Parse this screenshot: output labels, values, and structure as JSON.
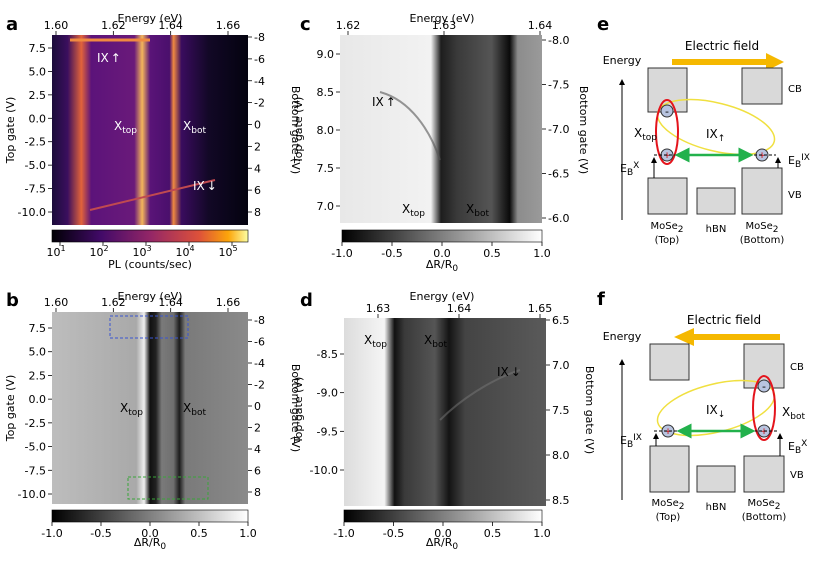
{
  "panels": {
    "a": {
      "label": "a",
      "top_axis": "Energy (eV)",
      "top_ticks": [
        "1.60",
        "1.62",
        "1.64",
        "1.66"
      ],
      "left_axis": "Top gate (V)",
      "left_ticks": [
        "7.5",
        "5.0",
        "2.5",
        "0.0",
        "-2.5",
        "-5.0",
        "-7.5",
        "-10.0"
      ],
      "right_axis": "Bottom gate (V)",
      "right_ticks": [
        "-8",
        "-6",
        "-4",
        "-2",
        "0",
        "2",
        "4",
        "6",
        "8"
      ],
      "annotations": {
        "ix_up": "IX",
        "x_top": "X",
        "x_top_sub": "top",
        "x_bot": "X",
        "x_bot_sub": "bot",
        "ix_down": "IX"
      },
      "colorbar_label": "PL (counts/sec)",
      "colorbar_ticks": [
        "10",
        "10",
        "10",
        "10",
        "10"
      ],
      "colorbar_exponents": [
        "1",
        "2",
        "3",
        "4",
        "5"
      ]
    },
    "b": {
      "label": "b",
      "top_axis": "Energy (eV)",
      "top_ticks": [
        "1.60",
        "1.62",
        "1.64",
        "1.66"
      ],
      "left_axis": "Top gate (V)",
      "left_ticks": [
        "7.5",
        "5.0",
        "2.5",
        "0.0",
        "-2.5",
        "-5.0",
        "-7.5",
        "-10.0"
      ],
      "right_axis": "Bottom gate (V)",
      "right_ticks": [
        "-8",
        "-6",
        "-4",
        "-2",
        "0",
        "2",
        "4",
        "6",
        "8"
      ],
      "annotations": {
        "x_top": "X",
        "x_top_sub": "top",
        "x_bot": "X",
        "x_bot_sub": "bot"
      },
      "colorbar_label": "ΔR/R",
      "colorbar_label_sub": "0",
      "colorbar_ticks": [
        "-1.0",
        "-0.5",
        "0.0",
        "0.5",
        "1.0"
      ]
    },
    "c": {
      "label": "c",
      "top_axis": "Energy (eV)",
      "top_ticks": [
        "1.62",
        "1.63",
        "1.64"
      ],
      "left_axis": "Top gate (V)",
      "left_ticks": [
        "9.0",
        "8.5",
        "8.0",
        "7.5",
        "7.0"
      ],
      "right_axis": "Bottom gate (V)",
      "right_ticks": [
        "-8.0",
        "-7.5",
        "-7.0",
        "-6.5",
        "-6.0"
      ],
      "annotations": {
        "ix_up": "IX",
        "x_top": "X",
        "x_top_sub": "top",
        "x_bot": "X",
        "x_bot_sub": "bot"
      },
      "colorbar_label": "ΔR/R",
      "colorbar_label_sub": "0",
      "colorbar_ticks": [
        "-1.0",
        "-0.5",
        "0.0",
        "0.5",
        "1.0"
      ]
    },
    "d": {
      "label": "d",
      "top_axis": "Energy (eV)",
      "top_ticks": [
        "1.63",
        "1.64",
        "1.65"
      ],
      "left_axis": "Top gate (V)",
      "left_ticks": [
        "-8.5",
        "-9.0",
        "-9.5",
        "-10.0"
      ],
      "right_axis": "Bottom gate (V)",
      "right_ticks": [
        "6.5",
        "7.0",
        "7.5",
        "8.0",
        "8.5"
      ],
      "annotations": {
        "x_top": "X",
        "x_top_sub": "top",
        "x_bot": "X",
        "x_bot_sub": "bot",
        "ix_down": "IX"
      },
      "colorbar_label": "ΔR/R",
      "colorbar_label_sub": "0",
      "colorbar_ticks": [
        "-1.0",
        "-0.5",
        "0.0",
        "0.5",
        "1.0"
      ]
    },
    "e": {
      "label": "e",
      "field_label": "Electric field",
      "energy_label": "Energy",
      "cb": "CB",
      "vb": "VB",
      "x_top": "X",
      "x_top_sub": "top",
      "ix": "IX",
      "eb": "E",
      "eb_sub": "B",
      "eb_x": "X",
      "eb_ix": "IX",
      "minus": "-",
      "plus": "+",
      "layer_left": "MoSe",
      "layer_left_sub": "2",
      "layer_left_pos": "(Top)",
      "layer_mid": "hBN",
      "layer_right": "MoSe",
      "layer_right_sub": "2",
      "layer_right_pos": "(Bottom)"
    },
    "f": {
      "label": "f",
      "field_label": "Electric field",
      "energy_label": "Energy",
      "cb": "CB",
      "vb": "VB",
      "x_bot": "X",
      "x_bot_sub": "bot",
      "ix": "IX",
      "eb": "E",
      "eb_sub": "B",
      "eb_x": "X",
      "eb_ix": "IX",
      "minus": "-",
      "plus": "+",
      "layer_left": "MoSe",
      "layer_left_sub": "2",
      "layer_left_pos": "(Top)",
      "layer_mid": "hBN",
      "layer_right": "MoSe",
      "layer_right_sub": "2",
      "layer_right_pos": "(Bottom)"
    }
  },
  "colors": {
    "field_arrow": "#f5b800",
    "ellipse_red": "#e4141c",
    "ellipse_yellow": "#f0e040",
    "binding_arrow": "#22b14c",
    "band_fill": "#d9d9d9",
    "particle_fill": "#b8c4e0"
  }
}
